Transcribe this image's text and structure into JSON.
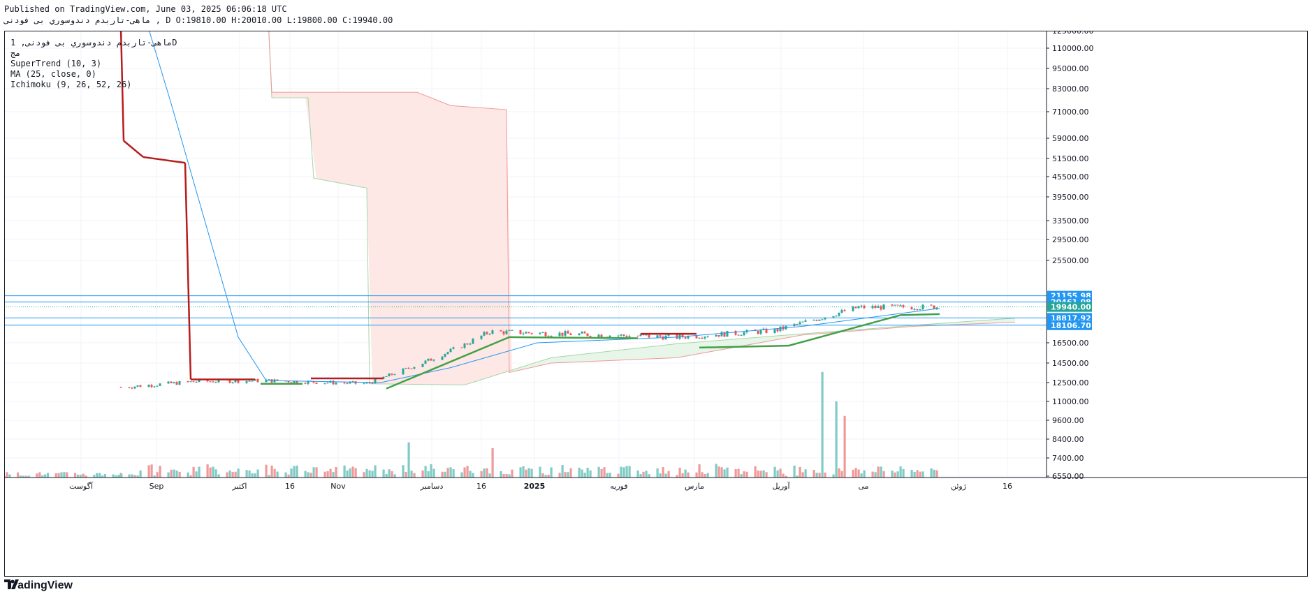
{
  "header": {
    "published_line": "Published on TradingView.com, June 03, 2025 06:06:18 UTC",
    "ohlc_line": "ماهی-تاربدم دندوسوري بی فودنی , D O:19810.00 H:20010.00 L:19800.00 C:19940.00"
  },
  "legend": {
    "symbol_line": "ماهی-تاربدم دندوسوري بی فودنی, 1D",
    "exchange_line": "مج",
    "supertrend": "SuperTrend (10, 3)",
    "ma": "MA (25, close, 0)",
    "ichimoku": "Ichimoku (9, 26, 52, 26)"
  },
  "footer": {
    "brand": "TradingView"
  },
  "colors": {
    "up": "#26a69a",
    "down": "#ef5350",
    "volume_up": "#80cbc4",
    "volume_down": "#ef9a9a",
    "supertrend_down": "#b71c1c",
    "supertrend_up": "#43a047",
    "ma": "#2196f3",
    "cloud_bull": "#e8f5e9",
    "cloud_bear": "#fde8e6",
    "span_a": "#a5d6a7",
    "span_b": "#ef9a9a",
    "hline": "#2196f3",
    "label_bg": "#2196f3",
    "last_bg": "#26a69a"
  },
  "chart_data": {
    "type": "candlestick",
    "interval": "1D",
    "y_scale": "log",
    "y_ticks": [
      "125000.00",
      "110000.00",
      "95000.00",
      "83000.00",
      "71000.00",
      "59000.00",
      "51500.00",
      "45500.00",
      "39500.00",
      "33500.00",
      "29500.00",
      "25500.00",
      "16500.00",
      "14500.00",
      "12500.00",
      "11000.00",
      "9600.00",
      "8400.00",
      "7400.00",
      "6550.00"
    ],
    "x_ticks": [
      "آگوست",
      "Sep",
      "اکتبر",
      "16",
      "Nov",
      "دسامبر",
      "16",
      "2025",
      "فوریه",
      "مارس",
      "آوریل",
      "می",
      "ژوئن",
      "16"
    ],
    "price_labels": [
      {
        "value": "21155.98",
        "kind": "level"
      },
      {
        "value": "20461.08",
        "kind": "level"
      },
      {
        "value": "19940.00",
        "kind": "last"
      },
      {
        "value": "18817.92",
        "kind": "level"
      },
      {
        "value": "18106.70",
        "kind": "level"
      }
    ],
    "horizontal_levels": [
      21155.98,
      20461.08,
      18817.92,
      18106.7
    ],
    "last_price": 19940,
    "last_bar": {
      "open": 19810,
      "high": 20010,
      "low": 19800,
      "close": 19940
    },
    "series": [
      {
        "type": "candles",
        "segments": [
          {
            "from": "2024-08-14",
            "to": "2024-09-10",
            "start": 12100,
            "end": 12600
          },
          {
            "from": "2024-09-10",
            "to": "2024-10-05",
            "start": 12600,
            "end": 12700
          },
          {
            "from": "2024-10-05",
            "to": "2024-11-10",
            "start": 12700,
            "end": 12400
          },
          {
            "from": "2024-11-10",
            "to": "2024-12-24",
            "start": 12400,
            "end": 17500
          },
          {
            "from": "2024-12-24",
            "to": "2025-03-01",
            "start": 17500,
            "end": 17000
          },
          {
            "from": "2025-03-01",
            "to": "2025-04-05",
            "start": 17000,
            "end": 17600
          },
          {
            "from": "2025-04-05",
            "to": "2025-05-05",
            "start": 17600,
            "end": 19900
          },
          {
            "from": "2025-05-05",
            "to": "2025-06-03",
            "start": 19900,
            "end": 19940
          }
        ]
      },
      {
        "type": "supertrend",
        "points": [
          [
            "2024-08-14",
            128000,
            "down"
          ],
          [
            "2024-08-15",
            58000,
            "down"
          ],
          [
            "2024-08-22",
            52000,
            "down"
          ],
          [
            "2024-09-06",
            50000,
            "down"
          ],
          [
            "2024-09-08",
            12800,
            "down"
          ],
          [
            "2024-10-01",
            12800,
            "down"
          ],
          [
            "2024-10-03",
            12400,
            "up"
          ],
          [
            "2024-10-18",
            12400,
            "up"
          ],
          [
            "2024-10-21",
            12900,
            "down"
          ],
          [
            "2024-11-16",
            12900,
            "down"
          ],
          [
            "2024-11-17",
            12000,
            "up"
          ],
          [
            "2024-12-31",
            17000,
            "up"
          ],
          [
            "2025-02-15",
            16900,
            "up"
          ],
          [
            "2025-02-16",
            17300,
            "down"
          ],
          [
            "2025-03-08",
            17300,
            "down"
          ],
          [
            "2025-03-09",
            16000,
            "up"
          ],
          [
            "2025-04-10",
            16200,
            "up"
          ],
          [
            "2025-05-20",
            19100,
            "up"
          ],
          [
            "2025-06-03",
            19200,
            "up"
          ]
        ]
      },
      {
        "type": "ma",
        "period": 25,
        "points": [
          [
            "2024-08-18",
            190000
          ],
          [
            "2024-09-01",
            75000
          ],
          [
            "2024-09-25",
            17000
          ],
          [
            "2024-10-05",
            12700
          ],
          [
            "2024-11-15",
            12500
          ],
          [
            "2024-12-10",
            14000
          ],
          [
            "2025-01-10",
            16500
          ],
          [
            "2025-03-01",
            17000
          ],
          [
            "2025-04-15",
            18000
          ],
          [
            "2025-06-03",
            19800
          ]
        ]
      },
      {
        "type": "ichimoku_span_a",
        "points": [
          [
            "2024-10-05",
            190000
          ],
          [
            "2024-10-07",
            78000
          ],
          [
            "2024-10-20",
            78000
          ],
          [
            "2024-10-22",
            45000
          ],
          [
            "2024-11-10",
            42000
          ],
          [
            "2024-11-11",
            12400
          ],
          [
            "2024-12-15",
            12300
          ],
          [
            "2025-01-15",
            15000
          ],
          [
            "2025-03-01",
            16400
          ],
          [
            "2025-04-15",
            17300
          ],
          [
            "2025-05-25",
            18100
          ],
          [
            "2025-06-30",
            18800
          ]
        ]
      },
      {
        "type": "ichimoku_span_b",
        "points": [
          [
            "2024-10-05",
            190000
          ],
          [
            "2024-10-07",
            81000
          ],
          [
            "2024-11-28",
            81000
          ],
          [
            "2024-12-10",
            74000
          ],
          [
            "2024-12-30",
            72000
          ],
          [
            "2024-12-31",
            13500
          ],
          [
            "2025-01-15",
            14500
          ],
          [
            "2025-03-01",
            15000
          ],
          [
            "2025-04-15",
            17200
          ],
          [
            "2025-05-25",
            18000
          ],
          [
            "2025-06-30",
            18400
          ]
        ]
      },
      {
        "type": "volume",
        "spikes": [
          {
            "date": "2025-04-22",
            "value": 72,
            "dir": "up"
          },
          {
            "date": "2025-04-24",
            "value": 45,
            "dir": "down"
          },
          {
            "date": "2025-04-27",
            "value": 52,
            "dir": "up"
          },
          {
            "date": "2025-04-30",
            "value": 42,
            "dir": "down"
          },
          {
            "date": "2025-05-09",
            "value": 40,
            "dir": "down"
          },
          {
            "date": "2024-11-25",
            "value": 24,
            "dir": "up"
          },
          {
            "date": "2024-12-25",
            "value": 20,
            "dir": "down"
          }
        ]
      }
    ]
  }
}
